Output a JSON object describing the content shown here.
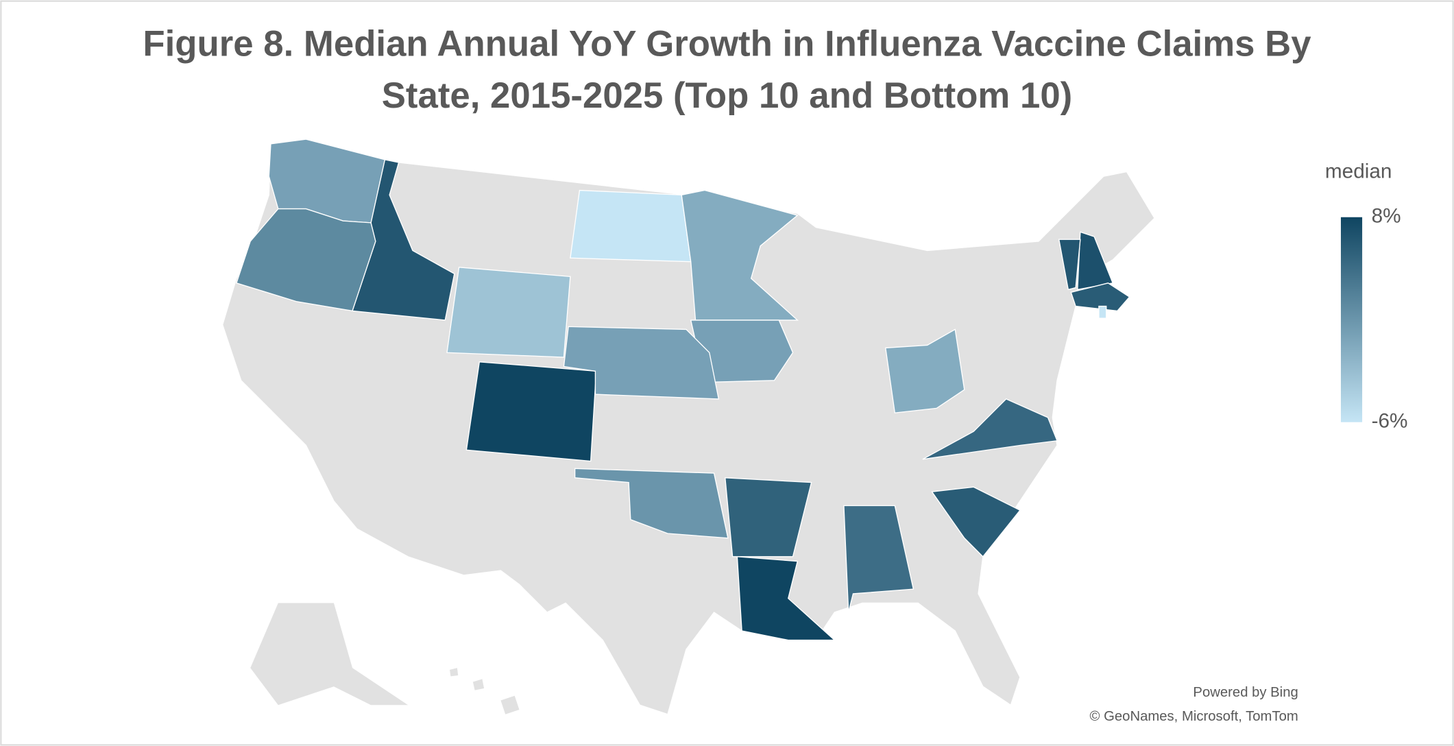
{
  "chart_data": {
    "type": "choropleth",
    "title": "Figure 8. Median Annual YoY Growth in Influenza Vaccine Claims By State, 2015-2025 (Top 10 and Bottom 10)",
    "values": [
      8,
      8,
      6.5,
      7,
      6.5,
      6,
      6,
      5.5,
      5,
      4.5,
      -6,
      -3,
      -1,
      -1,
      -6,
      0,
      0,
      0,
      1,
      2
    ],
    "colorbar": {
      "title": "median",
      "lim": [
        -6,
        8
      ],
      "ticks": [
        {
          "value": 8,
          "label": "8%"
        },
        {
          "value": -6,
          "label": "-6%"
        }
      ],
      "colors": [
        "#c5e5f5",
        "#0f4561"
      ]
    },
    "empty_color": "#e1e1e1",
    "credits": [
      "Powered by Bing",
      "© GeoNames, Microsoft, TomTom"
    ]
  }
}
